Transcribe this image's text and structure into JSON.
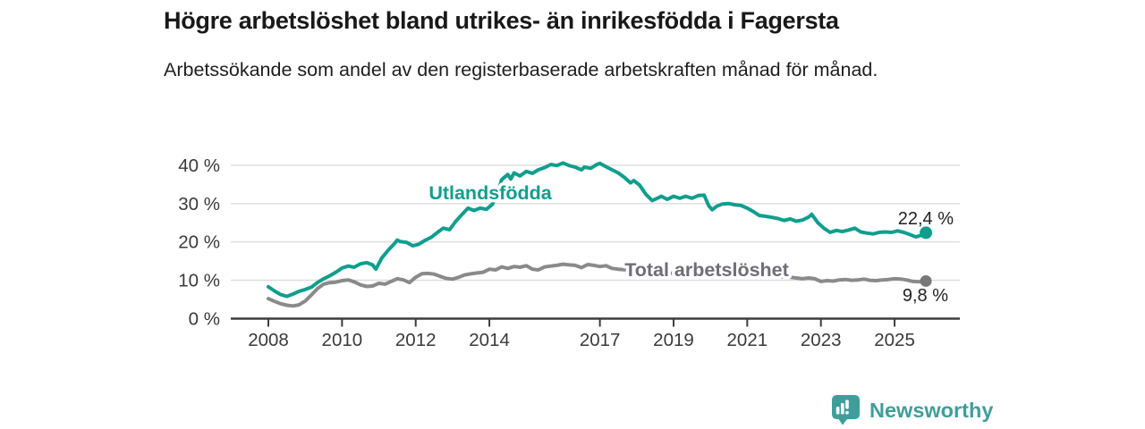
{
  "header": {
    "title": "Högre arbetslöshet bland utrikes- än inrikesfödda i Fagersta",
    "subtitle": "Arbetssökande som andel av den registerbaserade arbetskraften månad för månad."
  },
  "chart_data": {
    "type": "line",
    "title": "Högre arbetslöshet bland utrikes- än inrikesfödda i Fagersta",
    "subtitle": "Arbetssökande som andel av den registerbaserade arbetskraften månad för månad.",
    "xlabel": "",
    "ylabel": "",
    "y_unit": "%",
    "grid": true,
    "legend_position": "inline-labels",
    "xlim": [
      2006.9,
      2026.8
    ],
    "ylim": [
      0,
      42
    ],
    "x_ticks": [
      2008,
      2010,
      2012,
      2014,
      2017,
      2019,
      2021,
      2023,
      2025
    ],
    "x_tick_labels": [
      "2008",
      "2010",
      "2012",
      "2014",
      "2017",
      "2019",
      "2021",
      "2023",
      "2025"
    ],
    "y_ticks": [
      0,
      10,
      20,
      30,
      40
    ],
    "y_tick_labels": [
      "0 %",
      "10 %",
      "20 %",
      "30 %",
      "40 %"
    ],
    "series": [
      {
        "name": "Utlandsfödda",
        "color": "#109e8d",
        "label_color": "#109e8d",
        "end_label": "22,4 %",
        "end_value": 22.4,
        "points": [
          [
            2008.0,
            8.3
          ],
          [
            2008.17,
            7.2
          ],
          [
            2008.33,
            6.3
          ],
          [
            2008.5,
            5.8
          ],
          [
            2008.67,
            6.4
          ],
          [
            2008.83,
            7.1
          ],
          [
            2009.0,
            7.6
          ],
          [
            2009.17,
            8.2
          ],
          [
            2009.33,
            9.4
          ],
          [
            2009.5,
            10.4
          ],
          [
            2009.67,
            11.2
          ],
          [
            2009.83,
            12.1
          ],
          [
            2010.0,
            13.2
          ],
          [
            2010.17,
            13.7
          ],
          [
            2010.33,
            13.4
          ],
          [
            2010.5,
            14.3
          ],
          [
            2010.67,
            14.6
          ],
          [
            2010.83,
            14.0
          ],
          [
            2010.92,
            12.9
          ],
          [
            2011.08,
            15.8
          ],
          [
            2011.25,
            17.8
          ],
          [
            2011.42,
            19.5
          ],
          [
            2011.5,
            20.5
          ],
          [
            2011.58,
            20.1
          ],
          [
            2011.75,
            19.9
          ],
          [
            2011.92,
            19.0
          ],
          [
            2012.08,
            19.4
          ],
          [
            2012.25,
            20.4
          ],
          [
            2012.42,
            21.2
          ],
          [
            2012.58,
            22.4
          ],
          [
            2012.75,
            23.6
          ],
          [
            2012.92,
            23.2
          ],
          [
            2013.08,
            25.3
          ],
          [
            2013.25,
            27.1
          ],
          [
            2013.42,
            28.8
          ],
          [
            2013.58,
            28.2
          ],
          [
            2013.75,
            28.8
          ],
          [
            2013.92,
            28.5
          ],
          [
            2014.08,
            29.8
          ],
          [
            2014.25,
            33.5
          ],
          [
            2014.33,
            36.2
          ],
          [
            2014.5,
            37.6
          ],
          [
            2014.58,
            36.4
          ],
          [
            2014.67,
            38.0
          ],
          [
            2014.83,
            37.2
          ],
          [
            2015.0,
            38.4
          ],
          [
            2015.17,
            37.9
          ],
          [
            2015.33,
            38.8
          ],
          [
            2015.5,
            39.4
          ],
          [
            2015.67,
            40.2
          ],
          [
            2015.83,
            39.9
          ],
          [
            2016.0,
            40.6
          ],
          [
            2016.17,
            39.9
          ],
          [
            2016.33,
            39.5
          ],
          [
            2016.5,
            38.8
          ],
          [
            2016.58,
            39.5
          ],
          [
            2016.75,
            39.2
          ],
          [
            2016.92,
            40.2
          ],
          [
            2017.0,
            40.5
          ],
          [
            2017.17,
            39.6
          ],
          [
            2017.33,
            38.8
          ],
          [
            2017.5,
            38.0
          ],
          [
            2017.67,
            36.8
          ],
          [
            2017.83,
            35.4
          ],
          [
            2017.92,
            36.0
          ],
          [
            2018.08,
            34.8
          ],
          [
            2018.25,
            32.4
          ],
          [
            2018.42,
            30.8
          ],
          [
            2018.58,
            31.5
          ],
          [
            2018.67,
            31.9
          ],
          [
            2018.83,
            31.1
          ],
          [
            2019.0,
            31.9
          ],
          [
            2019.17,
            31.4
          ],
          [
            2019.33,
            31.9
          ],
          [
            2019.5,
            31.4
          ],
          [
            2019.67,
            32.1
          ],
          [
            2019.83,
            32.2
          ],
          [
            2019.95,
            29.5
          ],
          [
            2020.05,
            28.4
          ],
          [
            2020.17,
            29.3
          ],
          [
            2020.33,
            29.9
          ],
          [
            2020.5,
            30.0
          ],
          [
            2020.67,
            29.7
          ],
          [
            2020.83,
            29.5
          ],
          [
            2021.0,
            28.8
          ],
          [
            2021.17,
            27.9
          ],
          [
            2021.33,
            26.9
          ],
          [
            2021.5,
            26.7
          ],
          [
            2021.67,
            26.4
          ],
          [
            2021.83,
            26.1
          ],
          [
            2022.0,
            25.6
          ],
          [
            2022.17,
            26.0
          ],
          [
            2022.33,
            25.4
          ],
          [
            2022.5,
            25.7
          ],
          [
            2022.67,
            26.5
          ],
          [
            2022.75,
            27.2
          ],
          [
            2022.92,
            25.0
          ],
          [
            2023.08,
            23.6
          ],
          [
            2023.25,
            22.5
          ],
          [
            2023.42,
            23.0
          ],
          [
            2023.58,
            22.7
          ],
          [
            2023.75,
            23.1
          ],
          [
            2023.92,
            23.6
          ],
          [
            2024.08,
            22.6
          ],
          [
            2024.25,
            22.3
          ],
          [
            2024.42,
            22.1
          ],
          [
            2024.58,
            22.5
          ],
          [
            2024.75,
            22.6
          ],
          [
            2024.92,
            22.5
          ],
          [
            2025.08,
            22.9
          ],
          [
            2025.25,
            22.5
          ],
          [
            2025.42,
            21.9
          ],
          [
            2025.58,
            21.3
          ],
          [
            2025.75,
            21.8
          ],
          [
            2025.85,
            22.4
          ]
        ]
      },
      {
        "name": "Total arbetslöshet",
        "color": "#8a8a8a",
        "label_color": "#6f6d76",
        "end_label": "9,8 %",
        "end_value": 9.8,
        "points": [
          [
            2008.0,
            5.2
          ],
          [
            2008.17,
            4.5
          ],
          [
            2008.33,
            3.9
          ],
          [
            2008.5,
            3.5
          ],
          [
            2008.67,
            3.3
          ],
          [
            2008.83,
            3.6
          ],
          [
            2009.0,
            4.6
          ],
          [
            2009.17,
            6.2
          ],
          [
            2009.33,
            7.8
          ],
          [
            2009.5,
            9.0
          ],
          [
            2009.67,
            9.4
          ],
          [
            2009.83,
            9.5
          ],
          [
            2010.0,
            9.9
          ],
          [
            2010.17,
            10.1
          ],
          [
            2010.33,
            9.6
          ],
          [
            2010.5,
            8.8
          ],
          [
            2010.67,
            8.4
          ],
          [
            2010.83,
            8.5
          ],
          [
            2011.0,
            9.2
          ],
          [
            2011.17,
            9.0
          ],
          [
            2011.33,
            9.7
          ],
          [
            2011.5,
            10.4
          ],
          [
            2011.67,
            10.1
          ],
          [
            2011.83,
            9.4
          ],
          [
            2012.0,
            10.8
          ],
          [
            2012.17,
            11.7
          ],
          [
            2012.33,
            11.8
          ],
          [
            2012.5,
            11.6
          ],
          [
            2012.67,
            11.0
          ],
          [
            2012.83,
            10.5
          ],
          [
            2013.0,
            10.3
          ],
          [
            2013.17,
            10.8
          ],
          [
            2013.33,
            11.4
          ],
          [
            2013.5,
            11.7
          ],
          [
            2013.67,
            11.9
          ],
          [
            2013.83,
            12.1
          ],
          [
            2014.0,
            12.9
          ],
          [
            2014.17,
            12.7
          ],
          [
            2014.33,
            13.5
          ],
          [
            2014.5,
            13.1
          ],
          [
            2014.67,
            13.6
          ],
          [
            2014.83,
            13.4
          ],
          [
            2015.0,
            13.8
          ],
          [
            2015.17,
            12.9
          ],
          [
            2015.33,
            12.7
          ],
          [
            2015.5,
            13.5
          ],
          [
            2015.67,
            13.7
          ],
          [
            2015.83,
            13.9
          ],
          [
            2016.0,
            14.2
          ],
          [
            2016.17,
            14.0
          ],
          [
            2016.33,
            13.9
          ],
          [
            2016.5,
            13.3
          ],
          [
            2016.67,
            14.1
          ],
          [
            2016.83,
            13.9
          ],
          [
            2017.0,
            13.6
          ],
          [
            2017.17,
            13.8
          ],
          [
            2017.33,
            13.1
          ],
          [
            2017.5,
            12.9
          ],
          [
            2017.75,
            12.7
          ],
          [
            2018.0,
            12.5
          ],
          [
            2018.25,
            12.3
          ],
          [
            2018.5,
            12.1
          ],
          [
            2018.75,
            11.9
          ],
          [
            2019.0,
            11.8
          ],
          [
            2019.25,
            11.6
          ],
          [
            2019.5,
            11.5
          ],
          [
            2019.75,
            11.4
          ],
          [
            2020.0,
            11.6
          ],
          [
            2020.25,
            11.8
          ],
          [
            2020.5,
            11.9
          ],
          [
            2020.75,
            11.7
          ],
          [
            2021.0,
            11.5
          ],
          [
            2021.25,
            11.3
          ],
          [
            2021.5,
            11.1
          ],
          [
            2021.75,
            11.0
          ],
          [
            2022.0,
            10.9
          ],
          [
            2022.17,
            10.8
          ],
          [
            2022.33,
            10.6
          ],
          [
            2022.5,
            10.4
          ],
          [
            2022.67,
            10.6
          ],
          [
            2022.83,
            10.4
          ],
          [
            2023.0,
            9.7
          ],
          [
            2023.17,
            9.9
          ],
          [
            2023.33,
            9.8
          ],
          [
            2023.5,
            10.1
          ],
          [
            2023.67,
            10.2
          ],
          [
            2023.83,
            10.0
          ],
          [
            2024.0,
            10.1
          ],
          [
            2024.17,
            10.3
          ],
          [
            2024.33,
            10.0
          ],
          [
            2024.5,
            9.9
          ],
          [
            2024.67,
            10.1
          ],
          [
            2024.83,
            10.2
          ],
          [
            2025.0,
            10.4
          ],
          [
            2025.17,
            10.3
          ],
          [
            2025.33,
            10.1
          ],
          [
            2025.5,
            9.7
          ],
          [
            2025.67,
            9.6
          ],
          [
            2025.85,
            9.8
          ]
        ]
      }
    ]
  },
  "footer": {
    "brand": "Newsworthy",
    "brand_color": "#3f9e9a"
  },
  "colors": {
    "accent_teal": "#109e8d",
    "series_gray": "#8a8a8a",
    "grid": "#dcdcdc",
    "axis": "#3d3d3d"
  },
  "icons": {
    "logo": "newsworthy-speech-bubble-bar-chart-icon"
  }
}
